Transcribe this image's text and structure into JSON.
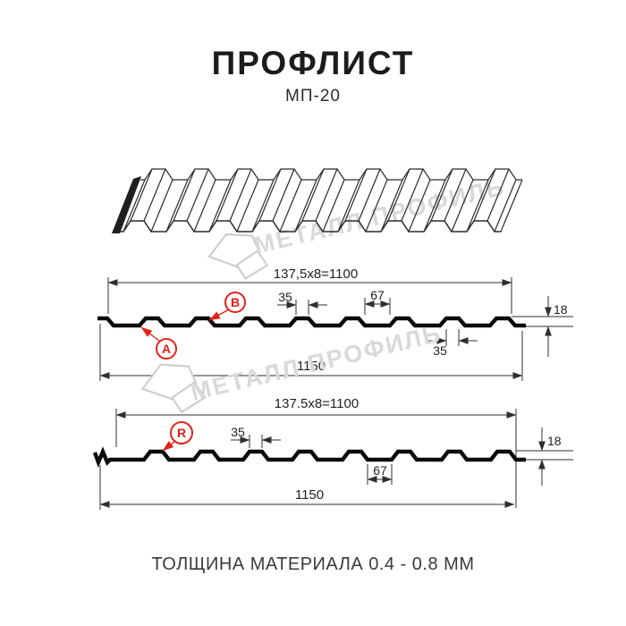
{
  "page": {
    "title": "ПРОФЛИСТ",
    "subtitle": "МП-20",
    "footer": "ТОЛЩИНА МАТЕРИАЛА 0.4 - 0.8 ММ"
  },
  "watermark": {
    "text": "МЕТАЛЛ ПРОФИЛЬ"
  },
  "colors": {
    "accent_red": "#e2231a",
    "line_black": "#111111",
    "dim_gray": "#2f2f2f",
    "watermark_gray": "#d9d9d9"
  },
  "diagram1": {
    "side": "A/B",
    "dim_modules": "137,5x8=1100",
    "dim_rib_top": "35",
    "dim_valley": "67",
    "dim_height": "18",
    "dim_rib_bottom": "35",
    "dim_full_width": "1150",
    "label_a": "А",
    "label_b": "В"
  },
  "diagram2": {
    "side": "R",
    "dim_modules": "137.5x8=1100",
    "dim_rib_top": "35",
    "dim_valley": "67",
    "dim_height": "18",
    "dim_full_width": "1150",
    "label_r": "R"
  }
}
